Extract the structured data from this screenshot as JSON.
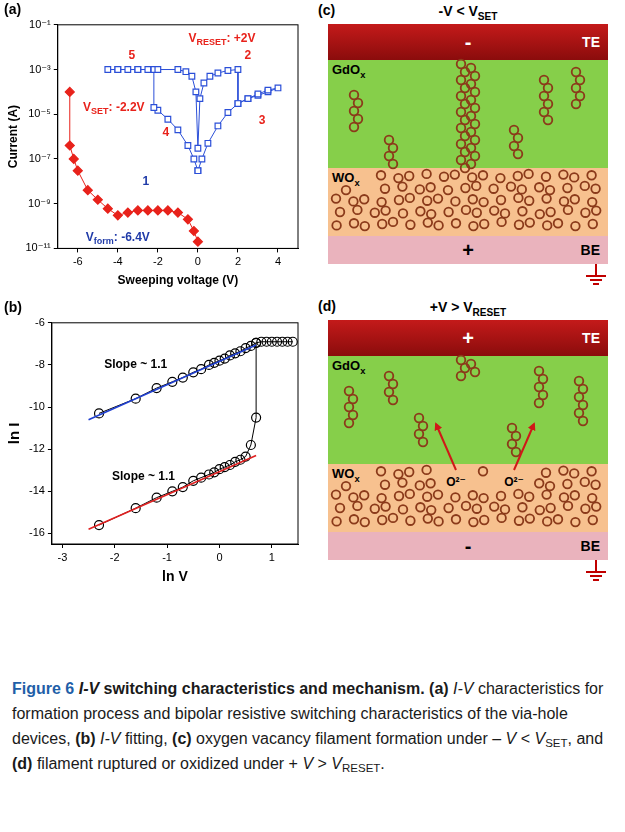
{
  "chart_data": [
    {
      "type": "scatter",
      "title": "(a)",
      "x_label": "Sweeping voltage (V)",
      "y_label": "Current (A)",
      "log": "y",
      "grid": false,
      "xlim": [
        -7,
        5
      ],
      "xticks": [
        -6,
        -4,
        -2,
        0,
        2,
        4
      ],
      "ylim": [
        1e-11,
        0.1
      ],
      "yticks": [
        {
          "value": 1e-11,
          "label": "10⁻¹¹"
        },
        {
          "value": 1e-09,
          "label": "10⁻⁹"
        },
        {
          "value": 1e-07,
          "label": "10⁻⁷"
        },
        {
          "value": 1e-05,
          "label": "10⁻⁵"
        },
        {
          "value": 0.001,
          "label": "10⁻³"
        },
        {
          "value": 0.1,
          "label": "10⁻¹"
        }
      ],
      "series": [
        {
          "color": "#e8221b",
          "marker": "diamond",
          "line_style": "solid",
          "x": [
            0,
            -0.2,
            -0.5,
            -1,
            -1.5,
            -2,
            -2.5,
            -3,
            -3.5,
            -4,
            -4.5,
            -5,
            -5.5,
            -6,
            -6.2,
            -6.4,
            -6.4
          ],
          "values": [
            2e-11,
            6e-11,
            2e-10,
            4e-10,
            5e-10,
            5e-10,
            5e-10,
            5e-10,
            4e-10,
            3e-10,
            6e-10,
            1.5e-09,
            4e-09,
            3e-08,
            1e-07,
            4e-07,
            0.0001
          ]
        },
        {
          "color": "#2b4fd8",
          "marker": "square_open",
          "line_style": "solid",
          "x": [
            0,
            -0.2,
            -0.5,
            -1,
            -1.5,
            -2,
            -2.2,
            -2.2,
            -2.5,
            -3,
            -3.5,
            -4,
            -4.5,
            -4,
            -3,
            -2,
            -1,
            -0.6,
            -0.3,
            -0.1,
            0,
            0.1,
            0.3,
            0.6,
            1,
            1.5,
            2,
            2,
            2.5,
            3,
            3.5,
            4,
            3.5,
            3,
            2.5,
            2,
            1.5,
            1,
            0.5,
            0.2,
            0
          ],
          "values": [
            3e-08,
            1e-07,
            4e-07,
            2e-06,
            6e-06,
            1.5e-05,
            2e-05,
            0.001,
            0.001,
            0.001,
            0.001,
            0.001,
            0.001,
            0.001,
            0.001,
            0.001,
            0.001,
            0.0008,
            0.0005,
            0.0001,
            3e-07,
            5e-05,
            0.00025,
            0.0005,
            0.0007,
            0.0009,
            0.001,
            3e-05,
            5e-05,
            7e-05,
            0.0001,
            0.00015,
            0.00012,
            8e-05,
            5e-05,
            3e-05,
            1.2e-05,
            3e-06,
            5e-07,
            1e-07,
            3e-08
          ]
        }
      ],
      "annotations": [
        {
          "text": "5",
          "x": -3.3,
          "y": 0.004,
          "color": "#e8221b"
        },
        {
          "text": "2",
          "x": 2.5,
          "y": 0.004,
          "color": "#e8221b"
        },
        {
          "text": "V",
          "sub": "RESET",
          "tail": ": +2V",
          "x": 1.2,
          "y": 0.025,
          "color": "#e8221b"
        },
        {
          "text": "V",
          "sub": "SET",
          "tail": ": -2.2V",
          "x": -4.2,
          "y": 2e-05,
          "color": "#e8221b"
        },
        {
          "text": "4",
          "x": -1.6,
          "y": 1.5e-06,
          "color": "#e8221b"
        },
        {
          "text": "3",
          "x": 3.2,
          "y": 5e-06,
          "color": "#e8221b"
        },
        {
          "text": "1",
          "x": -2.6,
          "y": 1e-08,
          "color": "#1f3aa8"
        },
        {
          "text": "V",
          "sub": "form",
          "tail": ": -6.4V",
          "x": -4.0,
          "y": 3e-11,
          "color": "#1f3aa8"
        }
      ]
    },
    {
      "type": "scatter",
      "title": "(b)",
      "x_label": "ln V",
      "y_label": "ln I",
      "grid": false,
      "xlim": [
        -3.2,
        1.5
      ],
      "xticks": [
        -3,
        -2,
        -1,
        0,
        1
      ],
      "ylim": [
        -16.5,
        -6
      ],
      "yticks": [
        -16,
        -14,
        -12,
        -10,
        -8,
        -6
      ],
      "series": [
        {
          "color": "#1f3fd0",
          "marker": "none",
          "line_style": "solid",
          "x": [
            -2.5,
            0.7
          ],
          "values": [
            -10.6,
            -7.05
          ]
        },
        {
          "color": "#e02020",
          "marker": "none",
          "line_style": "solid",
          "x": [
            -2.5,
            0.7
          ],
          "values": [
            -15.8,
            -12.3
          ]
        },
        {
          "color": "#000000",
          "marker": "circle_open",
          "line_style": "solid",
          "x": [
            -2.3,
            -1.6,
            -1.2,
            -0.9,
            -0.7,
            -0.5,
            -0.35,
            -0.2,
            -0.1,
            0,
            0.1,
            0.2,
            0.3,
            0.4,
            0.5,
            0.6,
            0.7,
            0.8,
            0.9,
            1.0,
            1.1,
            1.2,
            1.3,
            1.4
          ],
          "values": [
            -10.3,
            -9.6,
            -9.1,
            -8.8,
            -8.6,
            -8.35,
            -8.2,
            -8.0,
            -7.9,
            -7.8,
            -7.7,
            -7.55,
            -7.45,
            -7.35,
            -7.2,
            -7.1,
            -6.95,
            -6.9,
            -6.9,
            -6.9,
            -6.9,
            -6.9,
            -6.9,
            -6.9
          ]
        },
        {
          "color": "#000000",
          "marker": "circle_open",
          "line_style": "solid",
          "x": [
            -2.3,
            -1.6,
            -1.2,
            -0.9,
            -0.7,
            -0.5,
            -0.35,
            -0.2,
            -0.1,
            0,
            0.1,
            0.2,
            0.3,
            0.4,
            0.5,
            0.6,
            0.7,
            0.7
          ],
          "values": [
            -15.6,
            -14.8,
            -14.3,
            -14.0,
            -13.8,
            -13.5,
            -13.35,
            -13.2,
            -13.1,
            -12.95,
            -12.85,
            -12.75,
            -12.6,
            -12.5,
            -12.35,
            -11.8,
            -10.5,
            -6.95
          ]
        }
      ],
      "annotations": [
        {
          "text": "Slope ~ 1.1",
          "x": -1.6,
          "y": -8.0,
          "color": "#000000"
        },
        {
          "text": "Slope ~ 1.1",
          "x": -1.45,
          "y": -13.3,
          "color": "#000000"
        }
      ]
    }
  ],
  "diagrams": [
    {
      "panel": "(c)",
      "title": {
        "text": "-V < V",
        "sub": "SET"
      },
      "layers": [
        {
          "text": "TE",
          "sign": "-"
        },
        {
          "text": "GdO",
          "sub": "x"
        },
        {
          "text": "WO",
          "sub": "x"
        },
        {
          "text": "BE",
          "sign": "+"
        }
      ]
    },
    {
      "panel": "(d)",
      "title": {
        "text": "+V > V",
        "sub": "RESET"
      },
      "layers": [
        {
          "text": "TE",
          "sign": "+"
        },
        {
          "text": "GdO",
          "sub": "x"
        },
        {
          "text": "WO",
          "sub": "x"
        },
        {
          "text": "BE",
          "sign": "-"
        }
      ],
      "ions": [
        "O²⁻",
        "O²⁻"
      ]
    }
  ],
  "caption": [
    {
      "text": "Figure 6 ",
      "bold": true,
      "color": "#1f5fa8"
    },
    {
      "text": "I-V",
      "bold": true,
      "italic": true
    },
    {
      "text": " switching characteristics and mechanism. ",
      "bold": true
    },
    {
      "text": "(a) ",
      "bold": true
    },
    {
      "text": "I-V",
      "italic": true
    },
    {
      "text": " characteristics for formation process and bipolar resistive switching characteristics of the via-hole devices, "
    },
    {
      "text": "(b) ",
      "bold": true
    },
    {
      "text": "I-V",
      "italic": true
    },
    {
      "text": " fitting, "
    },
    {
      "text": "(c)",
      "bold": true
    },
    {
      "text": " oxygen vacancy filament formation under – "
    },
    {
      "text": "V",
      "italic": true
    },
    {
      "text": " < "
    },
    {
      "text": "V",
      "italic": true
    },
    {
      "text": "SET",
      "sub": true
    },
    {
      "text": ", and "
    },
    {
      "text": "(d)",
      "bold": true
    },
    {
      "text": " filament ruptured or oxidized under + "
    },
    {
      "text": "V",
      "italic": true
    },
    {
      "text": " > "
    },
    {
      "text": "V",
      "italic": true
    },
    {
      "text": "RESET",
      "sub": true
    },
    {
      "text": "."
    }
  ]
}
